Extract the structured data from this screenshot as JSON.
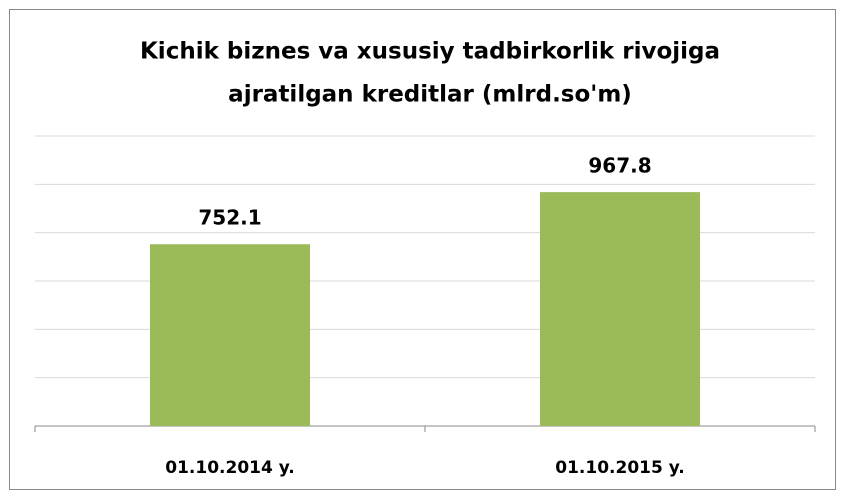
{
  "chart_data": {
    "type": "bar",
    "title": [
      "Kichik biznes va xususiy tadbirkorlik rivojiga",
      "ajratilgan kreditlar (mlrd.so'm)"
    ],
    "categories": [
      "01.10.2014 y.",
      "01.10.2015 y."
    ],
    "values": [
      752.1,
      967.8
    ],
    "color": "#9bbb59",
    "ylim": [
      0,
      1200
    ],
    "yticks": [
      0,
      200,
      400,
      600,
      800,
      1000,
      1200
    ],
    "grid": true
  }
}
